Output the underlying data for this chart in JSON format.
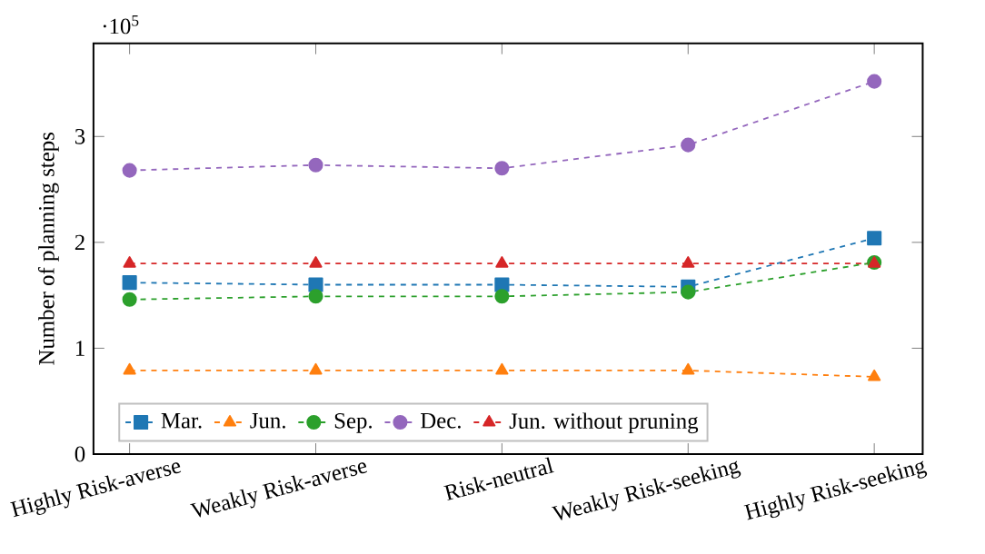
{
  "chart_data": {
    "type": "line",
    "ylabel": "Number of planning steps",
    "annotations": [
      "·10$^{5}$"
    ],
    "categories": [
      "Highly Risk-averse",
      "Weakly Risk-averse",
      "Risk-neutral",
      "Weakly Risk-seeking",
      "Highly Risk-seeking"
    ],
    "series": [
      {
        "name": "Mar.",
        "color": "#1f77b4",
        "marker": "square",
        "values": [
          1.62,
          1.6,
          1.6,
          1.58,
          2.04
        ]
      },
      {
        "name": "Jun.",
        "color": "#ff7f0e",
        "marker": "triangle",
        "values": [
          0.79,
          0.79,
          0.79,
          0.79,
          0.73
        ]
      },
      {
        "name": "Sep.",
        "color": "#2ca02c",
        "marker": "circle",
        "values": [
          1.46,
          1.49,
          1.49,
          1.53,
          1.81
        ]
      },
      {
        "name": "Dec.",
        "color": "#9467bd",
        "marker": "circle",
        "values": [
          2.68,
          2.73,
          2.7,
          2.92,
          3.52
        ]
      },
      {
        "name": "Jun. without pruning",
        "color": "#d62728",
        "marker": "triangle",
        "values": [
          1.8,
          1.8,
          1.8,
          1.8,
          1.8
        ]
      }
    ],
    "ylim": [
      0,
      3.88
    ],
    "yticks": [
      0,
      1,
      2,
      3
    ],
    "line_style": "dashed",
    "legend": "bottom left",
    "grid": false
  }
}
